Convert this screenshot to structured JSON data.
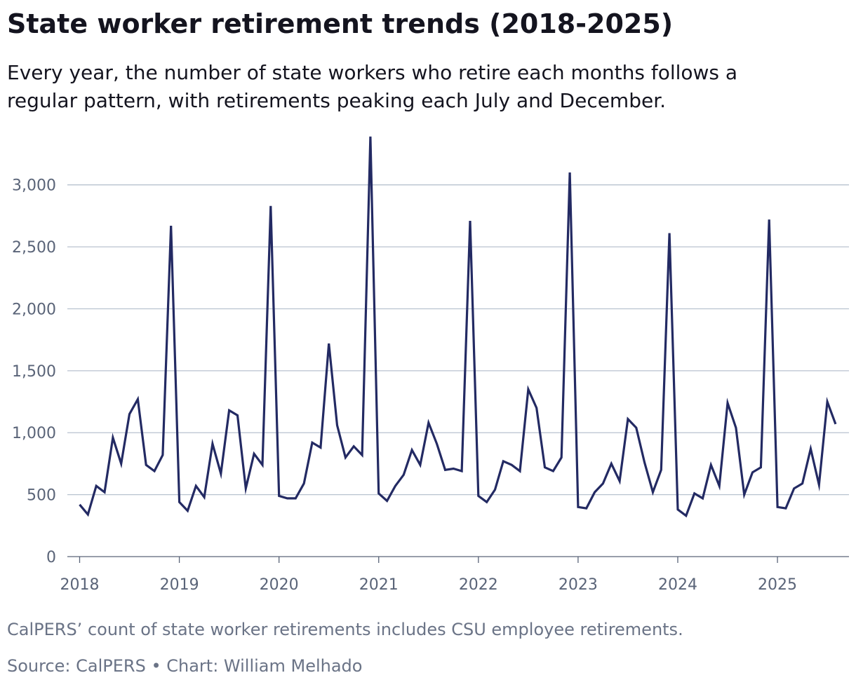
{
  "header": {
    "title": "State worker retirement trends (2018-2025)",
    "subtitle": "Every year, the number of state workers who retire each months follows a regular pattern, with retirements peaking each July and December."
  },
  "footer": {
    "note": "CalPERS’ count of state worker retirements includes CSU employee retirements.",
    "source": "Source: CalPERS • Chart: William Melhado"
  },
  "colors": {
    "line": "#232a63",
    "grid": "#b8c2cf",
    "axis": "#5a6478"
  },
  "chart_data": {
    "type": "line",
    "title": "State worker retirement trends (2018-2025)",
    "xlabel": "",
    "ylabel": "",
    "x_start": "2018-01",
    "x_step": "month",
    "ylim": [
      0,
      3400
    ],
    "yticks": [
      0,
      500,
      1000,
      1500,
      2000,
      2500,
      3000
    ],
    "ytick_labels": [
      "0",
      "500",
      "1,000",
      "1,500",
      "2,000",
      "2,500",
      "3,000"
    ],
    "xtick_labels": [
      "2018",
      "2019",
      "2020",
      "2021",
      "2022",
      "2023",
      "2024",
      "2025"
    ],
    "xtick_values": [
      "2018-01",
      "2019-01",
      "2020-01",
      "2021-01",
      "2022-01",
      "2023-01",
      "2024-01",
      "2025-01"
    ],
    "grid": true,
    "legend": "none",
    "series": [
      {
        "values": [
          420,
          340,
          570,
          520,
          960,
          750,
          1150,
          1270,
          740,
          690,
          820,
          2670,
          440,
          370,
          570,
          480,
          910,
          670,
          1180,
          1140,
          550,
          830,
          740,
          2830,
          490,
          470,
          470,
          590,
          920,
          880,
          1720,
          1060,
          800,
          890,
          820,
          3390,
          510,
          450,
          570,
          660,
          860,
          740,
          1080,
          910,
          700,
          710,
          690,
          2710,
          490,
          440,
          540,
          770,
          740,
          690,
          1350,
          1200,
          720,
          690,
          800,
          3100,
          400,
          390,
          520,
          590,
          750,
          610,
          1110,
          1040,
          760,
          520,
          700,
          2610,
          380,
          330,
          510,
          470,
          740,
          570,
          1240,
          1040,
          500,
          680,
          720,
          2720,
          400,
          390,
          550,
          590,
          870,
          580,
          1250,
          1070
        ]
      }
    ]
  }
}
